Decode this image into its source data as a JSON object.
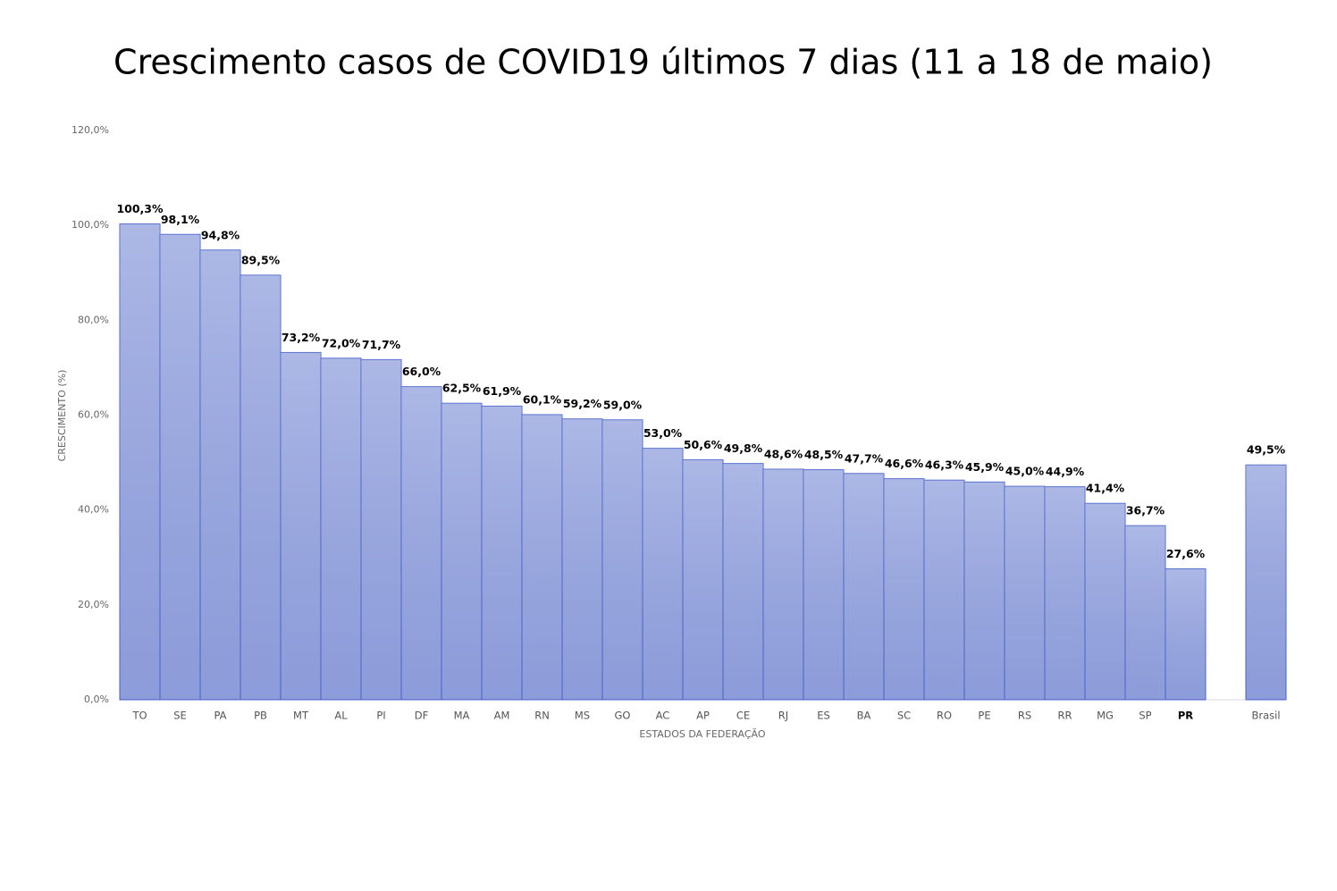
{
  "chart_data": {
    "type": "bar",
    "title": "Crescimento casos de COVID19 últimos 7 dias (11 a 18 de maio)",
    "x_label": "ESTADOS DA FEDERAÇÃO",
    "y_label": "CRESCIMENTO (%)",
    "categories": [
      "TO",
      "SE",
      "PA",
      "PB",
      "MT",
      "AL",
      "PI",
      "DF",
      "MA",
      "AM",
      "RN",
      "MS",
      "GO",
      "AC",
      "AP",
      "CE",
      "RJ",
      "ES",
      "BA",
      "SC",
      "RO",
      "PE",
      "RS",
      "RR",
      "MG",
      "SP",
      "PR",
      null,
      "Brasil"
    ],
    "values": [
      100.3,
      98.1,
      94.8,
      89.5,
      73.2,
      72.0,
      71.7,
      66.0,
      62.5,
      61.9,
      60.1,
      59.2,
      59.0,
      53.0,
      50.6,
      49.8,
      48.6,
      48.5,
      47.7,
      46.6,
      46.3,
      45.9,
      45.0,
      44.9,
      41.4,
      36.7,
      27.6,
      null,
      49.5
    ],
    "value_labels": [
      "100,3%",
      "98,1%",
      "94,8%",
      "89,5%",
      "73,2%",
      "72,0%",
      "71,7%",
      "66,0%",
      "62,5%",
      "61,9%",
      "60,1%",
      "59,2%",
      "59,0%",
      "53,0%",
      "50,6%",
      "49,8%",
      "48,6%",
      "48,5%",
      "47,7%",
      "46,6%",
      "46,3%",
      "45,9%",
      "45,0%",
      "44,9%",
      "41,4%",
      "36,7%",
      "27,6%",
      null,
      "49,5%"
    ],
    "color": "#9aa8df",
    "edge_color": "#4a63c9",
    "ylim": [
      0,
      120
    ],
    "yticks": [
      {
        "value": 0,
        "label": "0,0%"
      },
      {
        "value": 20,
        "label": "20,0%"
      },
      {
        "value": 40,
        "label": "40,0%"
      },
      {
        "value": 60,
        "label": "60,0%"
      },
      {
        "value": 80,
        "label": "80,0%"
      },
      {
        "value": 100,
        "label": "100,0%"
      },
      {
        "value": 120,
        "label": "120,0%"
      }
    ],
    "grid": false
  }
}
